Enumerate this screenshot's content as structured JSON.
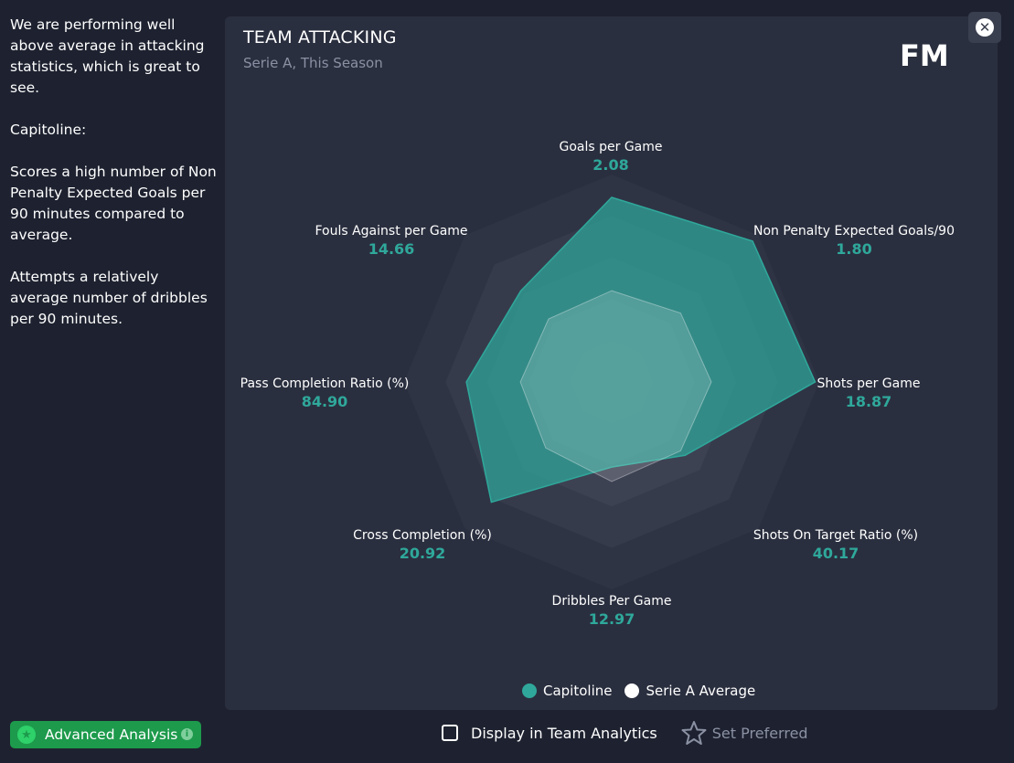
{
  "sidebar": {
    "para1": "We are performing well above average in attacking statistics, which is great to see.",
    "para2": "Capitoline:",
    "para3": "Scores a high number of Non Penalty Expected Goals per 90 minutes compared to average.",
    "para4": "Attempts a relatively average number of dribbles per 90 minutes."
  },
  "advanced_button": {
    "label": "Advanced Analysis",
    "icon": "star-icon",
    "info_icon": "info-icon"
  },
  "panel": {
    "title": "TEAM ATTACKING",
    "subtitle": "Serie A, This Season",
    "logo": "FM",
    "close_icon": "close-icon"
  },
  "chart_data": {
    "type": "radar",
    "axes": [
      {
        "name": "Goals per Game",
        "value": "2.08"
      },
      {
        "name": "Non Penalty Expected Goals/90",
        "value": "1.80"
      },
      {
        "name": "Shots per Game",
        "value": "18.87"
      },
      {
        "name": "Shots On Target Ratio (%)",
        "value": "40.17"
      },
      {
        "name": "Dribbles Per Game",
        "value": "12.97"
      },
      {
        "name": "Cross Completion (%)",
        "value": "20.92"
      },
      {
        "name": "Pass Completion Ratio (%)",
        "value": "84.90"
      },
      {
        "name": "Fouls Against per Game",
        "value": "14.66"
      }
    ],
    "series": [
      {
        "name": "Capitoline",
        "color": "#2fa89b",
        "normalized": [
          0.89,
          0.96,
          0.98,
          0.5,
          0.41,
          0.82,
          0.7,
          0.62
        ]
      },
      {
        "name": "Serie A Average",
        "color": "#ffffff",
        "normalized": [
          0.44,
          0.47,
          0.48,
          0.47,
          0.48,
          0.45,
          0.44,
          0.43
        ]
      }
    ],
    "rings": 5
  },
  "legend": {
    "item1": "Capitoline",
    "item2": "Serie A Average"
  },
  "bottom": {
    "display_label": "Display in Team Analytics",
    "set_preferred_label": "Set Preferred",
    "star_icon": "star-outline-icon"
  }
}
